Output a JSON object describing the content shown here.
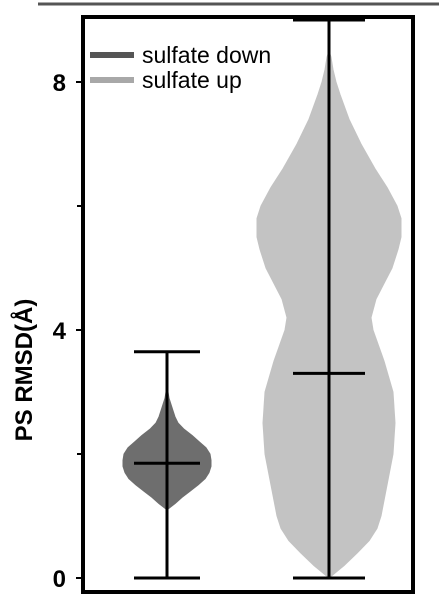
{
  "chart_data": {
    "type": "violin",
    "ylabel": "PS  RMSD(Å)",
    "ylim": [
      0,
      9.0
    ],
    "yticks": [
      0,
      4,
      8
    ],
    "ytick_labels": [
      "0",
      "4",
      "8"
    ],
    "legend_position": "top-left",
    "series": [
      {
        "name": "sulfate down",
        "color": "#6e6e6e",
        "min": 0.0,
        "max": 3.65,
        "median": 1.85,
        "density": [
          [
            0.0,
            0
          ],
          [
            1.1,
            0
          ],
          [
            1.2,
            0.08
          ],
          [
            1.3,
            0.15
          ],
          [
            1.4,
            0.23
          ],
          [
            1.5,
            0.31
          ],
          [
            1.6,
            0.38
          ],
          [
            1.7,
            0.42
          ],
          [
            1.8,
            0.44
          ],
          [
            1.9,
            0.44
          ],
          [
            2.0,
            0.43
          ],
          [
            2.1,
            0.39
          ],
          [
            2.2,
            0.32
          ],
          [
            2.3,
            0.25
          ],
          [
            2.4,
            0.17
          ],
          [
            2.5,
            0.11
          ],
          [
            2.6,
            0.08
          ],
          [
            2.7,
            0.06
          ],
          [
            2.8,
            0.04
          ],
          [
            2.9,
            0.02
          ],
          [
            3.0,
            0.01
          ],
          [
            3.05,
            0
          ]
        ]
      },
      {
        "name": "sulfate up",
        "color": "#c3c3c3",
        "min": 0.0,
        "max": 9.0,
        "median": 3.3,
        "density": [
          [
            0.0,
            0.0
          ],
          [
            0.2,
            0.15
          ],
          [
            0.4,
            0.28
          ],
          [
            0.6,
            0.4
          ],
          [
            0.8,
            0.48
          ],
          [
            1.0,
            0.52
          ],
          [
            1.5,
            0.58
          ],
          [
            2.0,
            0.64
          ],
          [
            2.5,
            0.66
          ],
          [
            3.0,
            0.64
          ],
          [
            3.5,
            0.55
          ],
          [
            4.0,
            0.44
          ],
          [
            4.2,
            0.42
          ],
          [
            4.5,
            0.47
          ],
          [
            5.0,
            0.63
          ],
          [
            5.3,
            0.69
          ],
          [
            5.5,
            0.72
          ],
          [
            5.8,
            0.72
          ],
          [
            6.0,
            0.68
          ],
          [
            6.3,
            0.58
          ],
          [
            6.6,
            0.46
          ],
          [
            7.0,
            0.32
          ],
          [
            7.4,
            0.2
          ],
          [
            7.8,
            0.11
          ],
          [
            8.0,
            0.07
          ],
          [
            8.2,
            0.04
          ],
          [
            8.4,
            0.02
          ],
          [
            8.5,
            0.0
          ]
        ]
      }
    ]
  }
}
